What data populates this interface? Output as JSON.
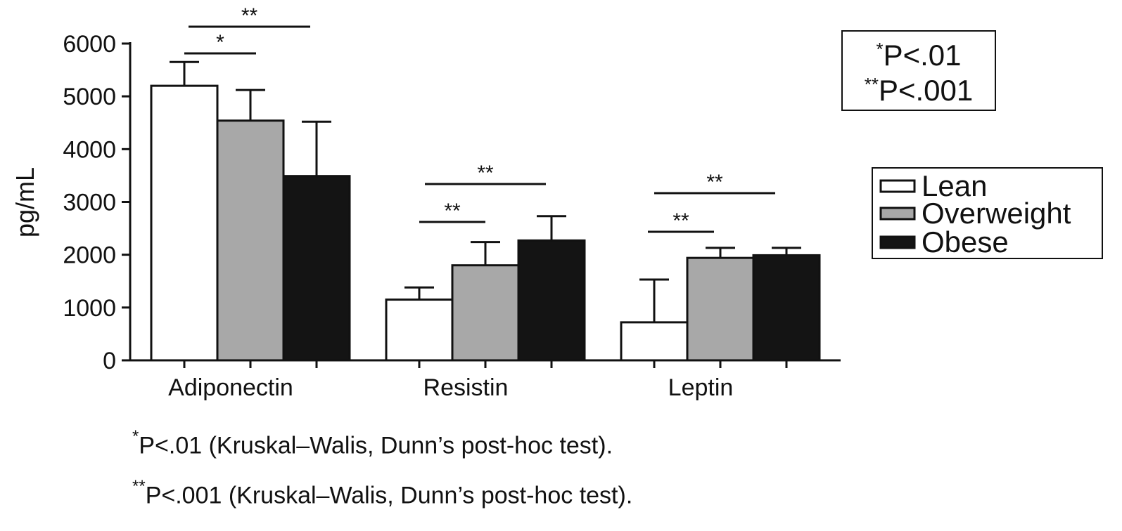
{
  "chart_data": {
    "type": "bar",
    "categories": [
      "Adiponectin",
      "Resistin",
      "Leptin"
    ],
    "ylabel": "pg/mL",
    "ylim": [
      0,
      6000
    ],
    "yticks": [
      0,
      1000,
      2000,
      3000,
      4000,
      5000,
      6000
    ],
    "grid": false,
    "legend_position": "right",
    "series": [
      {
        "name": "Lean",
        "values": [
          5200,
          1150,
          720
        ],
        "errors": [
          450,
          230,
          810
        ],
        "color": "#ffffff"
      },
      {
        "name": "Overweight",
        "values": [
          4540,
          1800,
          1940
        ],
        "errors": [
          580,
          440,
          190
        ],
        "color": "#a8a8a8"
      },
      {
        "name": "Obese",
        "values": [
          3490,
          2270,
          1990
        ],
        "errors": [
          1030,
          460,
          140
        ],
        "color": "#141414"
      }
    ],
    "significance": [
      {
        "category": "Adiponectin",
        "from": "Lean",
        "to": "Overweight",
        "label": "*"
      },
      {
        "category": "Adiponectin",
        "from": "Lean",
        "to": "Obese",
        "label": "**"
      },
      {
        "category": "Resistin",
        "from": "Lean",
        "to": "Overweight",
        "label": "**"
      },
      {
        "category": "Resistin",
        "from": "Lean",
        "to": "Obese",
        "label": "**"
      },
      {
        "category": "Leptin",
        "from": "Lean",
        "to": "Overweight",
        "label": "**"
      },
      {
        "category": "Leptin",
        "from": "Lean",
        "to": "Obese",
        "label": "**"
      }
    ],
    "pvalue_legend": [
      {
        "stars": "*",
        "text": "P<.01"
      },
      {
        "stars": "**",
        "text": "P<.001"
      }
    ]
  },
  "footnotes": [
    {
      "stars": "*",
      "text": "P<.01 (Kruskal–Walis, Dunn’s post-hoc test)."
    },
    {
      "stars": "**",
      "text": "P<.001 (Kruskal–Walis, Dunn’s post-hoc test)."
    }
  ]
}
